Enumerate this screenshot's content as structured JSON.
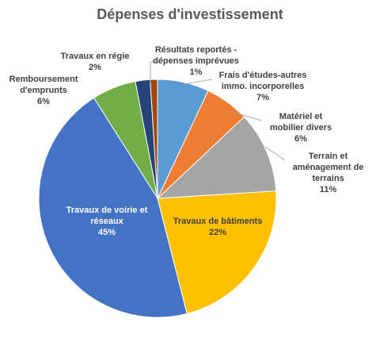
{
  "chart_data": {
    "type": "pie",
    "title": "Dépenses d'investissement",
    "categories": [
      "Frais d'études-autres immo. incorporelles",
      "Matériel et mobilier divers",
      "Terrain et aménagement de terrains",
      "Travaux de bâtiments",
      "Travaux de voirie et réseaux",
      "Remboursement d'emprunts",
      "Travaux en régie",
      "Résultats reportés - dépenses imprévues"
    ],
    "values": [
      7,
      6,
      11,
      22,
      45,
      6,
      2,
      1
    ],
    "value_labels": [
      "7%",
      "6%",
      "11%",
      "22%",
      "45%",
      "6%",
      "2%",
      "1%"
    ],
    "colors": [
      "#5b9bd5",
      "#ed7d31",
      "#a5a5a5",
      "#ffc000",
      "#4472c4",
      "#70ad47",
      "#264478",
      "#9e480e"
    ]
  }
}
